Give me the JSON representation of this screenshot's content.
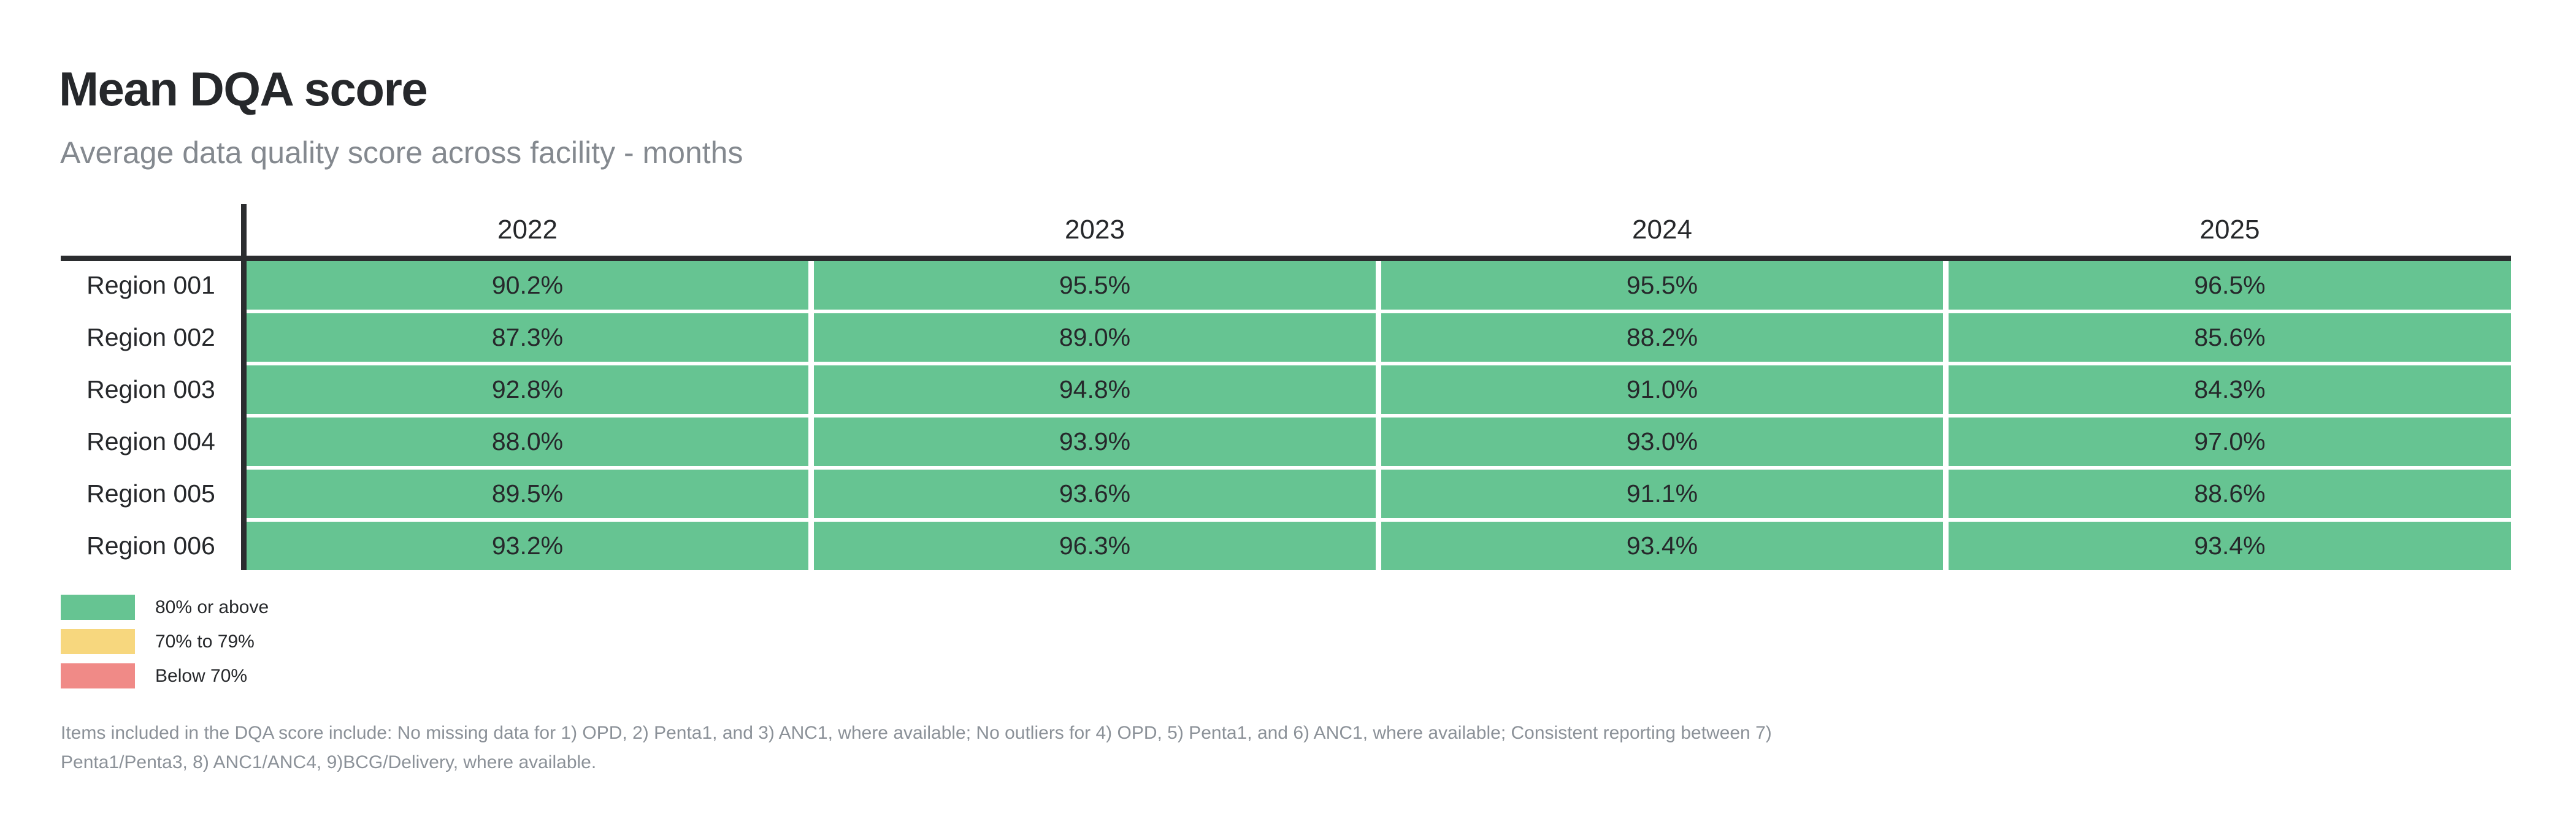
{
  "chart": {
    "title": "Mean DQA score",
    "subtitle": "Average data quality score across facility - months"
  },
  "table": {
    "years": [
      "2022",
      "2023",
      "2024",
      "2025"
    ],
    "rows": [
      {
        "label": "Region 001",
        "values": [
          "90.2%",
          "95.5%",
          "95.5%",
          "96.5%"
        ]
      },
      {
        "label": "Region 002",
        "values": [
          "87.3%",
          "89.0%",
          "88.2%",
          "85.6%"
        ]
      },
      {
        "label": "Region 003",
        "values": [
          "92.8%",
          "94.8%",
          "91.0%",
          "84.3%"
        ]
      },
      {
        "label": "Region 004",
        "values": [
          "88.0%",
          "93.9%",
          "93.0%",
          "97.0%"
        ]
      },
      {
        "label": "Region 005",
        "values": [
          "89.5%",
          "93.6%",
          "91.1%",
          "88.6%"
        ]
      },
      {
        "label": "Region 006",
        "values": [
          "93.2%",
          "96.3%",
          "93.4%",
          "93.4%"
        ]
      }
    ]
  },
  "legend": {
    "items": [
      {
        "label": "80% or above",
        "color": "#66C492"
      },
      {
        "label": "70% to 79%",
        "color": "#F7D77E"
      },
      {
        "label": "Below 70%",
        "color": "#F08A87"
      }
    ]
  },
  "footnote": {
    "lines": [
      "Items included in the DQA score include: No missing data for 1) OPD, 2) Penta1, and 3) ANC1, where available; No outliers for 4) OPD, 5) Penta1, and 6) ANC1, where available; Consistent reporting between 7)",
      "Penta1/Penta3, 8) ANC1/ANC4, 9)BCG/Delivery, where available."
    ]
  },
  "colors": {
    "band_high": "#66C492",
    "band_mid": "#F7D77E",
    "band_low": "#F08A87",
    "text_dark": "#26282B",
    "text_muted": "#84898F",
    "rule": "#2B2D2F"
  },
  "chart_data": {
    "type": "heatmap",
    "title": "Mean DQA score",
    "subtitle": "Average data quality score across facility - months",
    "unit": "%",
    "columns": [
      "2022",
      "2023",
      "2024",
      "2025"
    ],
    "rows": [
      "Region 001",
      "Region 002",
      "Region 003",
      "Region 004",
      "Region 005",
      "Region 006"
    ],
    "values": [
      [
        90.2,
        95.5,
        95.5,
        96.5
      ],
      [
        87.3,
        89.0,
        88.2,
        85.6
      ],
      [
        92.8,
        94.8,
        91.0,
        84.3
      ],
      [
        88.0,
        93.9,
        93.0,
        97.0
      ],
      [
        89.5,
        93.6,
        91.1,
        88.6
      ],
      [
        93.2,
        96.3,
        93.4,
        93.4
      ]
    ],
    "color_bins": [
      {
        "label": "80% or above",
        "color": "#66C492"
      },
      {
        "label": "70% to 79%",
        "color": "#F7D77E"
      },
      {
        "label": "Below 70%",
        "color": "#F08A87"
      }
    ],
    "legend_position": "bottom-left",
    "grid": false
  }
}
